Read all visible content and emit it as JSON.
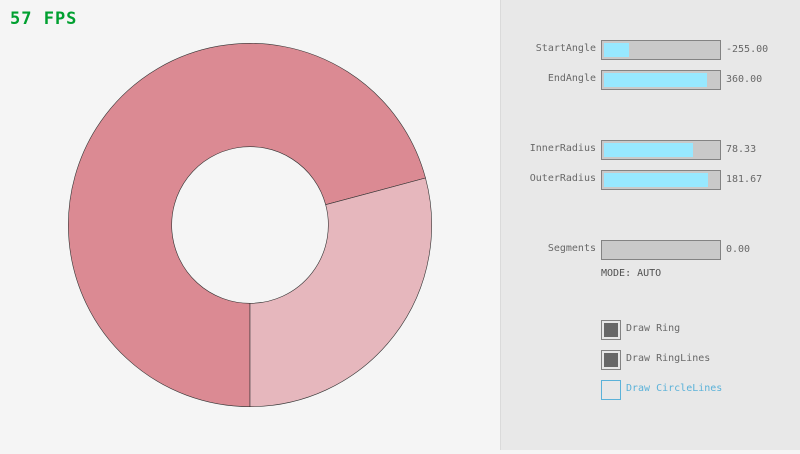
{
  "fps": "57 FPS",
  "colors": {
    "fps": "#00a030",
    "ring_overlap": "#db8a93",
    "ring_single": "#e6b7bd",
    "slider_fill": "#97e8ff",
    "focus": "#5bb2d9"
  },
  "controls": {
    "sliders": [
      {
        "label": "StartAngle",
        "value": "-255.00",
        "fill": 0.217
      },
      {
        "label": "EndAngle",
        "value": "360.00",
        "fill": 0.9
      },
      {
        "label": "InnerRadius",
        "value": "78.33",
        "fill": 0.783
      },
      {
        "label": "OuterRadius",
        "value": "181.67",
        "fill": 0.908
      },
      {
        "label": "Segments",
        "value": "0.00",
        "fill": 0
      }
    ],
    "mode": "MODE: AUTO",
    "checkboxes": [
      {
        "label": "Draw Ring",
        "checked": true
      },
      {
        "label": "Draw RingLines",
        "checked": true
      },
      {
        "label": "Draw CircleLines",
        "checked": false,
        "focused": true
      }
    ]
  }
}
